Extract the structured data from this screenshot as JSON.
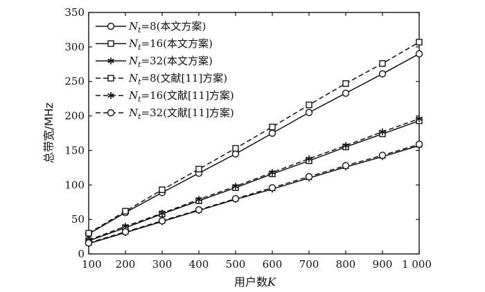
{
  "chart_data": {
    "type": "line",
    "xlabel_text": "用户数",
    "xlabel_var": "K",
    "ylabel": "总带宽/MHz",
    "x": [
      100,
      200,
      300,
      400,
      500,
      600,
      700,
      800,
      900,
      1000
    ],
    "x_tick_labels": [
      "100",
      "200",
      "300",
      "400",
      "500",
      "600",
      "700",
      "800",
      "900",
      "1 000"
    ],
    "xlim": [
      100,
      1000
    ],
    "ylim": [
      0,
      350
    ],
    "y_ticks": [
      0,
      50,
      100,
      150,
      200,
      250,
      300,
      350
    ],
    "grid": false,
    "legend_position": "top-left",
    "series": [
      {
        "name": "N_t=8(本文方案)",
        "nt": "8",
        "scheme": "(本文方案)",
        "line": "solid",
        "marker": "circle",
        "values": [
          29,
          60,
          89,
          117,
          145,
          175,
          205,
          233,
          261,
          290
        ]
      },
      {
        "name": "N_t=16(本文方案)",
        "nt": "16",
        "scheme": "(本文方案)",
        "line": "solid",
        "marker": "square",
        "values": [
          19,
          38,
          58,
          77,
          96,
          116,
          135,
          155,
          174,
          193
        ]
      },
      {
        "name": "N_t=32(本文方案)",
        "nt": "32",
        "scheme": "(本文方案)",
        "line": "solid",
        "marker": "star",
        "values": [
          15,
          31,
          47,
          63,
          79,
          94,
          110,
          126,
          141,
          157
        ]
      },
      {
        "name": "N_t=8(文献[11]方案)",
        "nt": "8",
        "scheme": "(文献[11]方案)",
        "line": "dashed",
        "marker": "square",
        "values": [
          30,
          62,
          93,
          123,
          153,
          184,
          216,
          247,
          276,
          307
        ]
      },
      {
        "name": "N_t=16(文献[11]方案)",
        "nt": "16",
        "scheme": "(文献[11]方案)",
        "line": "dashed",
        "marker": "star",
        "values": [
          20,
          40,
          59,
          79,
          98,
          118,
          138,
          157,
          177,
          196
        ]
      },
      {
        "name": "N_t=32(文献[11]方案)",
        "nt": "32",
        "scheme": "(文献[11]方案)",
        "line": "dashed",
        "marker": "circle",
        "values": [
          16,
          32,
          48,
          64,
          80,
          96,
          112,
          128,
          143,
          159
        ]
      }
    ]
  }
}
